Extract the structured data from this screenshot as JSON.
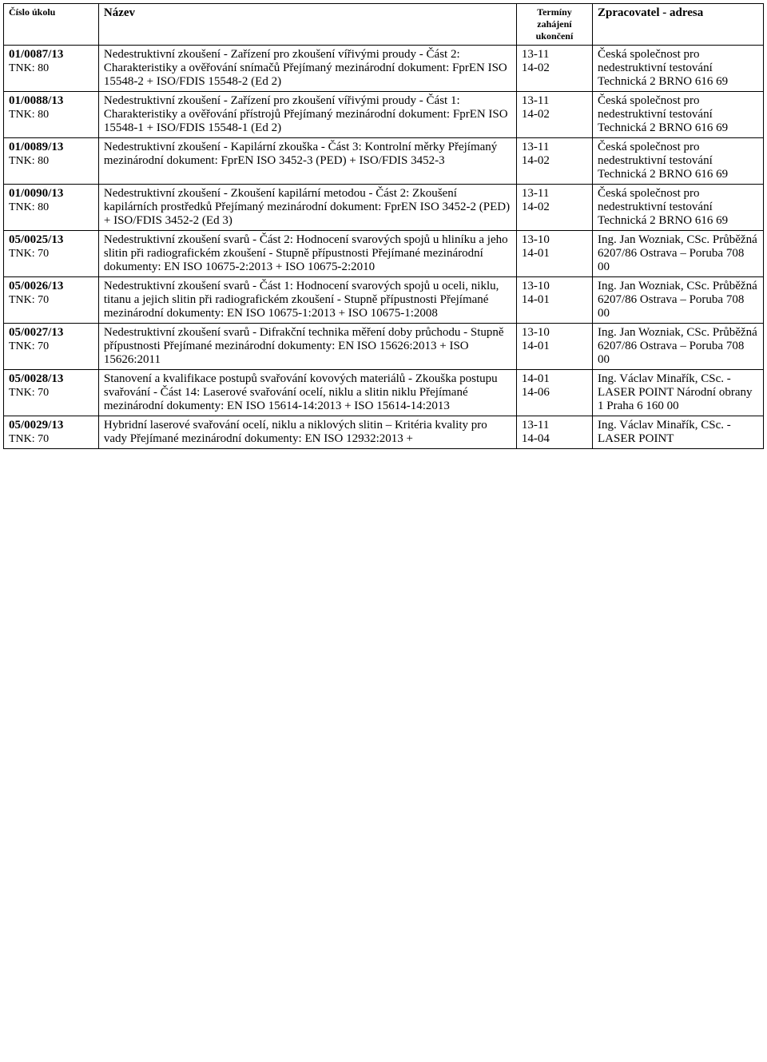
{
  "headers": {
    "id": "Číslo úkolu",
    "name": "Název",
    "dates": "Termíny zahájení ukončení",
    "proc": "Zpracovatel - adresa"
  },
  "rows": [
    {
      "id_line1": "01/0087/13",
      "id_line2": "TNK: 80",
      "name": "Nedestruktivní zkoušení - Zařízení pro zkoušení vířivými proudy - Část 2: Charakteristiky a ověřování snímačů Přejímaný mezinárodní dokument: FprEN ISO 15548-2 + ISO/FDIS 15548-2 (Ed 2)",
      "date_start": "13-11",
      "date_end": "14-02",
      "proc": "Česká společnost pro nedestruktivní testování Technická 2 BRNO 616 69"
    },
    {
      "id_line1": "01/0088/13",
      "id_line2": "TNK: 80",
      "name": "Nedestruktivní zkoušení - Zařízení pro zkoušení vířivými proudy - Část 1: Charakteristiky a ověřování přístrojů Přejímaný mezinárodní dokument: FprEN ISO 15548-1 + ISO/FDIS 15548-1 (Ed 2)",
      "date_start": "13-11",
      "date_end": "14-02",
      "proc": "Česká společnost pro nedestruktivní testování Technická 2 BRNO 616 69"
    },
    {
      "id_line1": "01/0089/13",
      "id_line2": "TNK: 80",
      "name": "Nedestruktivní zkoušení - Kapilární zkouška - Část 3: Kontrolní měrky Přejímaný mezinárodní dokument: FprEN ISO 3452-3 (PED) + ISO/FDIS 3452-3",
      "date_start": "13-11",
      "date_end": "14-02",
      "proc": "Česká společnost pro nedestruktivní testování Technická 2 BRNO 616 69"
    },
    {
      "id_line1": "01/0090/13",
      "id_line2": "TNK: 80",
      "name": "Nedestruktivní zkoušení - Zkoušení kapilární metodou - Část 2: Zkoušení kapilárních prostředků Přejímaný mezinárodní dokument: FprEN ISO 3452-2 (PED) + ISO/FDIS 3452-2 (Ed 3)",
      "date_start": "13-11",
      "date_end": "14-02",
      "proc": "Česká společnost pro nedestruktivní testování Technická 2 BRNO 616 69"
    },
    {
      "id_line1": "05/0025/13",
      "id_line2": "TNK: 70",
      "name": "Nedestruktivní zkoušení svarů - Část 2: Hodnocení svarových spojů u hliníku a jeho slitin při radiografickém zkoušení - Stupně přípustnosti Přejímané mezinárodní dokumenty: EN ISO 10675-2:2013 + ISO 10675-2:2010",
      "date_start": "13-10",
      "date_end": "14-01",
      "proc": "Ing. Jan Wozniak, CSc. Průběžná 6207/86 Ostrava – Poruba 708 00"
    },
    {
      "id_line1": "05/0026/13",
      "id_line2": "TNK: 70",
      "name": "Nedestruktivní zkoušení svarů - Část 1: Hodnocení svarových spojů u oceli, niklu, titanu a jejich slitin při radiografickém zkoušení - Stupně přípustnosti Přejímané mezinárodní dokumenty: EN ISO 10675-1:2013 + ISO 10675-1:2008",
      "date_start": "13-10",
      "date_end": "14-01",
      "proc": "Ing. Jan Wozniak, CSc. Průběžná 6207/86 Ostrava – Poruba 708 00"
    },
    {
      "id_line1": "05/0027/13",
      "id_line2": "TNK: 70",
      "name": "Nedestruktivní zkoušení svarů - Difrakční technika měření doby průchodu - Stupně přípustnosti Přejímané mezinárodní dokumenty: EN ISO 15626:2013 + ISO 15626:2011",
      "date_start": "13-10",
      "date_end": "14-01",
      "proc": "Ing. Jan Wozniak, CSc. Průběžná 6207/86 Ostrava – Poruba 708 00"
    },
    {
      "id_line1": "05/0028/13",
      "id_line2": "TNK: 70",
      "name": "Stanovení a kvalifikace postupů svařování kovových materiálů - Zkouška postupu svařování - Část 14: Laserové svařování ocelí, niklu a slitin niklu Přejímané mezinárodní dokumenty: EN ISO 15614-14:2013 + ISO 15614-14:2013",
      "date_start": "14-01",
      "date_end": "14-06",
      "proc": "Ing. Václav Minařík, CSc. - LASER POINT Národní obrany 1 Praha 6 160 00"
    },
    {
      "id_line1": "05/0029/13",
      "id_line2": "TNK: 70",
      "name": "Hybridní laserové svařování ocelí, niklu a niklových slitin – Kritéria kvality pro vady Přejímané mezinárodní dokumenty: EN ISO 12932:2013 +",
      "date_start": "13-11",
      "date_end": "14-04",
      "proc": "Ing. Václav Minařík, CSc. - LASER POINT"
    }
  ]
}
